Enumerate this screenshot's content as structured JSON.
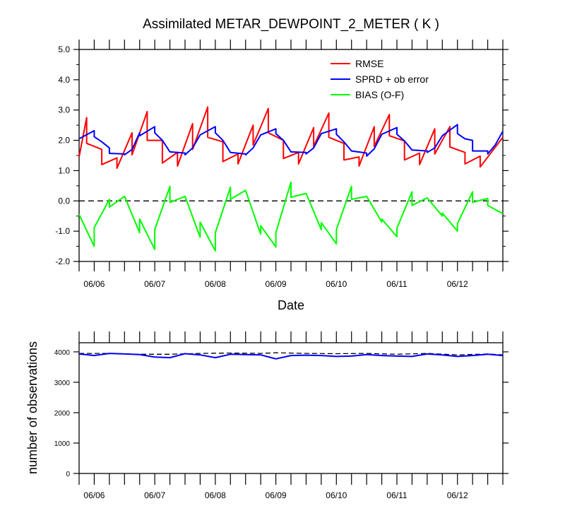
{
  "chart_data": [
    {
      "type": "line",
      "title": "Assimilated METAR_DEWPOINT_2_METER ( K )",
      "xlabel": "Date",
      "ylabel": "",
      "ylim": [
        -2.0,
        5.0
      ],
      "yticks": [
        "5.0",
        "4.0",
        "3.0",
        "2.0",
        "1.0",
        "0.0",
        "-1.0",
        "-2.0"
      ],
      "x_tick_labels": [
        "06/06",
        "06/07",
        "06/08",
        "06/09",
        "06/10",
        "06/11",
        "06/12"
      ],
      "reference_line": 0.0,
      "legend": "top-right",
      "series": [
        {
          "name": "RMSE",
          "color": "#ff0000",
          "points": [
            [
              0,
              1.45
            ],
            [
              0.5,
              2.75
            ],
            [
              0.5,
              1.9
            ],
            [
              1.5,
              1.7
            ],
            [
              1.5,
              1.2
            ],
            [
              2.5,
              1.42
            ],
            [
              2.5,
              1.08
            ],
            [
              3.5,
              2.25
            ],
            [
              3.5,
              1.52
            ],
            [
              4.5,
              2.95
            ],
            [
              4.5,
              2.0
            ],
            [
              5.5,
              2.0
            ],
            [
              5.5,
              1.25
            ],
            [
              6.5,
              1.6
            ],
            [
              6.5,
              1.15
            ],
            [
              7.5,
              2.55
            ],
            [
              7.5,
              1.7
            ],
            [
              8.5,
              3.1
            ],
            [
              8.5,
              2.1
            ],
            [
              9.5,
              1.95
            ],
            [
              9.5,
              1.3
            ],
            [
              10.5,
              1.55
            ],
            [
              10.5,
              1.22
            ],
            [
              11.5,
              2.5
            ],
            [
              11.5,
              1.85
            ],
            [
              12.5,
              3.05
            ],
            [
              12.5,
              2.25
            ],
            [
              13.5,
              2.0
            ],
            [
              13.5,
              1.4
            ],
            [
              14.5,
              1.6
            ],
            [
              14.5,
              1.22
            ],
            [
              15.5,
              2.42
            ],
            [
              15.5,
              1.8
            ],
            [
              16.5,
              2.9
            ],
            [
              16.5,
              2.1
            ],
            [
              17.5,
              1.9
            ],
            [
              17.5,
              1.35
            ],
            [
              18.5,
              1.45
            ],
            [
              18.5,
              1.15
            ],
            [
              19.5,
              2.45
            ],
            [
              19.5,
              1.8
            ],
            [
              20.5,
              2.85
            ],
            [
              20.5,
              2.15
            ],
            [
              21.5,
              1.98
            ],
            [
              21.5,
              1.35
            ],
            [
              22.5,
              1.58
            ],
            [
              22.5,
              1.2
            ],
            [
              23.5,
              2.38
            ],
            [
              23.5,
              1.55
            ],
            [
              24.5,
              2.45
            ],
            [
              24.5,
              1.78
            ],
            [
              25.5,
              1.6
            ],
            [
              25.5,
              1.22
            ],
            [
              26.5,
              1.48
            ],
            [
              26.5,
              1.12
            ],
            [
              28,
              2.1
            ]
          ]
        },
        {
          "name": "SPRD + ob error",
          "color": "#0000ff",
          "points": [
            [
              0,
              2.05
            ],
            [
              1,
              2.32
            ],
            [
              1,
              2.12
            ],
            [
              1.5,
              1.95
            ],
            [
              2,
              1.75
            ],
            [
              2,
              1.57
            ],
            [
              3,
              1.55
            ],
            [
              3,
              1.52
            ],
            [
              3.5,
              1.7
            ],
            [
              4,
              2.25
            ],
            [
              4,
              2.15
            ],
            [
              5,
              2.45
            ],
            [
              5,
              2.25
            ],
            [
              5.5,
              2.0
            ],
            [
              6,
              1.62
            ],
            [
              7,
              1.58
            ],
            [
              7,
              1.52
            ],
            [
              7.5,
              1.75
            ],
            [
              8,
              2.18
            ],
            [
              9,
              2.45
            ],
            [
              9,
              2.25
            ],
            [
              9.5,
              2.0
            ],
            [
              10,
              1.6
            ],
            [
              11,
              1.55
            ],
            [
              11,
              1.52
            ],
            [
              11.5,
              1.75
            ],
            [
              12,
              2.18
            ],
            [
              13,
              2.38
            ],
            [
              13,
              2.22
            ],
            [
              13.5,
              2.0
            ],
            [
              14,
              1.62
            ],
            [
              15,
              1.6
            ],
            [
              15,
              1.55
            ],
            [
              15.5,
              1.75
            ],
            [
              16,
              2.22
            ],
            [
              17,
              2.38
            ],
            [
              17,
              2.2
            ],
            [
              17.5,
              1.95
            ],
            [
              18,
              1.65
            ],
            [
              19,
              1.58
            ],
            [
              19,
              1.48
            ],
            [
              19.5,
              1.72
            ],
            [
              20,
              2.2
            ],
            [
              21,
              2.42
            ],
            [
              21,
              2.2
            ],
            [
              21.5,
              1.98
            ],
            [
              22,
              1.68
            ],
            [
              23,
              1.65
            ],
            [
              23,
              1.6
            ],
            [
              23.5,
              1.75
            ],
            [
              24,
              2.15
            ],
            [
              25,
              2.52
            ],
            [
              25,
              2.22
            ],
            [
              25.5,
              2.05
            ],
            [
              26,
              2.0
            ],
            [
              26,
              1.65
            ],
            [
              27,
              1.65
            ],
            [
              27,
              1.55
            ],
            [
              27.5,
              1.85
            ],
            [
              28,
              2.3
            ]
          ]
        },
        {
          "name": "BIAS (O-F)",
          "color": "#00ff00",
          "points": [
            [
              0,
              -0.45
            ],
            [
              1,
              -1.5
            ],
            [
              1,
              -0.88
            ],
            [
              2,
              0.05
            ],
            [
              2,
              -0.2
            ],
            [
              3,
              0.15
            ],
            [
              4,
              -1.05
            ],
            [
              4,
              -0.6
            ],
            [
              5,
              -1.6
            ],
            [
              5,
              -0.95
            ],
            [
              6,
              0.48
            ],
            [
              6,
              -0.05
            ],
            [
              7,
              0.15
            ],
            [
              8,
              -1.2
            ],
            [
              8,
              -0.7
            ],
            [
              9,
              -1.65
            ],
            [
              9,
              -1.05
            ],
            [
              10,
              0.45
            ],
            [
              10,
              0.05
            ],
            [
              11,
              0.35
            ],
            [
              12,
              -1.1
            ],
            [
              12,
              -0.82
            ],
            [
              13,
              -1.52
            ],
            [
              13,
              -1.05
            ],
            [
              14,
              0.62
            ],
            [
              14,
              0.12
            ],
            [
              15,
              0.25
            ],
            [
              16,
              -0.95
            ],
            [
              16,
              -0.72
            ],
            [
              17,
              -1.42
            ],
            [
              17,
              -0.95
            ],
            [
              18,
              0.48
            ],
            [
              18,
              0.05
            ],
            [
              19,
              0.15
            ],
            [
              20,
              -0.7
            ],
            [
              20,
              -0.6
            ],
            [
              21,
              -1.18
            ],
            [
              21,
              -0.9
            ],
            [
              22,
              0.3
            ],
            [
              22,
              -0.15
            ],
            [
              23,
              0.1
            ],
            [
              24,
              -0.5
            ],
            [
              24,
              -0.4
            ],
            [
              25,
              -1.0
            ],
            [
              25,
              -0.75
            ],
            [
              26,
              0.3
            ],
            [
              26,
              -0.05
            ],
            [
              27,
              0.08
            ],
            [
              27,
              -0.15
            ],
            [
              28,
              -0.42
            ]
          ]
        }
      ]
    },
    {
      "type": "line",
      "title": "",
      "xlabel": "",
      "ylabel": "number of observations",
      "ylim": [
        0,
        4300
      ],
      "yticks": [
        "0",
        "1000",
        "2000",
        "3000",
        "4000"
      ],
      "x_tick_labels": [
        "06/06",
        "06/07",
        "06/08",
        "06/09",
        "06/10",
        "06/11",
        "06/12"
      ],
      "series": [
        {
          "name": "",
          "color": "#000000",
          "dashed": true,
          "points": [
            [
              0,
              3950
            ],
            [
              2,
              3950
            ],
            [
              4,
              3920
            ],
            [
              6,
              3920
            ],
            [
              8,
              3950
            ],
            [
              10,
              3960
            ],
            [
              12,
              3950
            ],
            [
              13,
              3970
            ],
            [
              15,
              3950
            ],
            [
              17,
              3940
            ],
            [
              19,
              3950
            ],
            [
              21,
              3920
            ],
            [
              23,
              3950
            ],
            [
              25,
              3900
            ],
            [
              27,
              3930
            ],
            [
              28,
              3900
            ]
          ]
        },
        {
          "name": "",
          "color": "#0000ff",
          "dashed": false,
          "points": [
            [
              0,
              3930
            ],
            [
              1,
              3880
            ],
            [
              2,
              3950
            ],
            [
              3,
              3930
            ],
            [
              4,
              3910
            ],
            [
              5,
              3830
            ],
            [
              6,
              3810
            ],
            [
              7,
              3940
            ],
            [
              8,
              3900
            ],
            [
              9,
              3810
            ],
            [
              10,
              3920
            ],
            [
              11,
              3910
            ],
            [
              12,
              3900
            ],
            [
              13,
              3770
            ],
            [
              14,
              3880
            ],
            [
              15,
              3890
            ],
            [
              16,
              3880
            ],
            [
              17,
              3850
            ],
            [
              18,
              3860
            ],
            [
              19,
              3910
            ],
            [
              20,
              3880
            ],
            [
              21,
              3860
            ],
            [
              22,
              3850
            ],
            [
              23,
              3930
            ],
            [
              24,
              3900
            ],
            [
              25,
              3850
            ],
            [
              26,
              3880
            ],
            [
              27,
              3920
            ],
            [
              28,
              3880
            ]
          ]
        }
      ]
    }
  ]
}
